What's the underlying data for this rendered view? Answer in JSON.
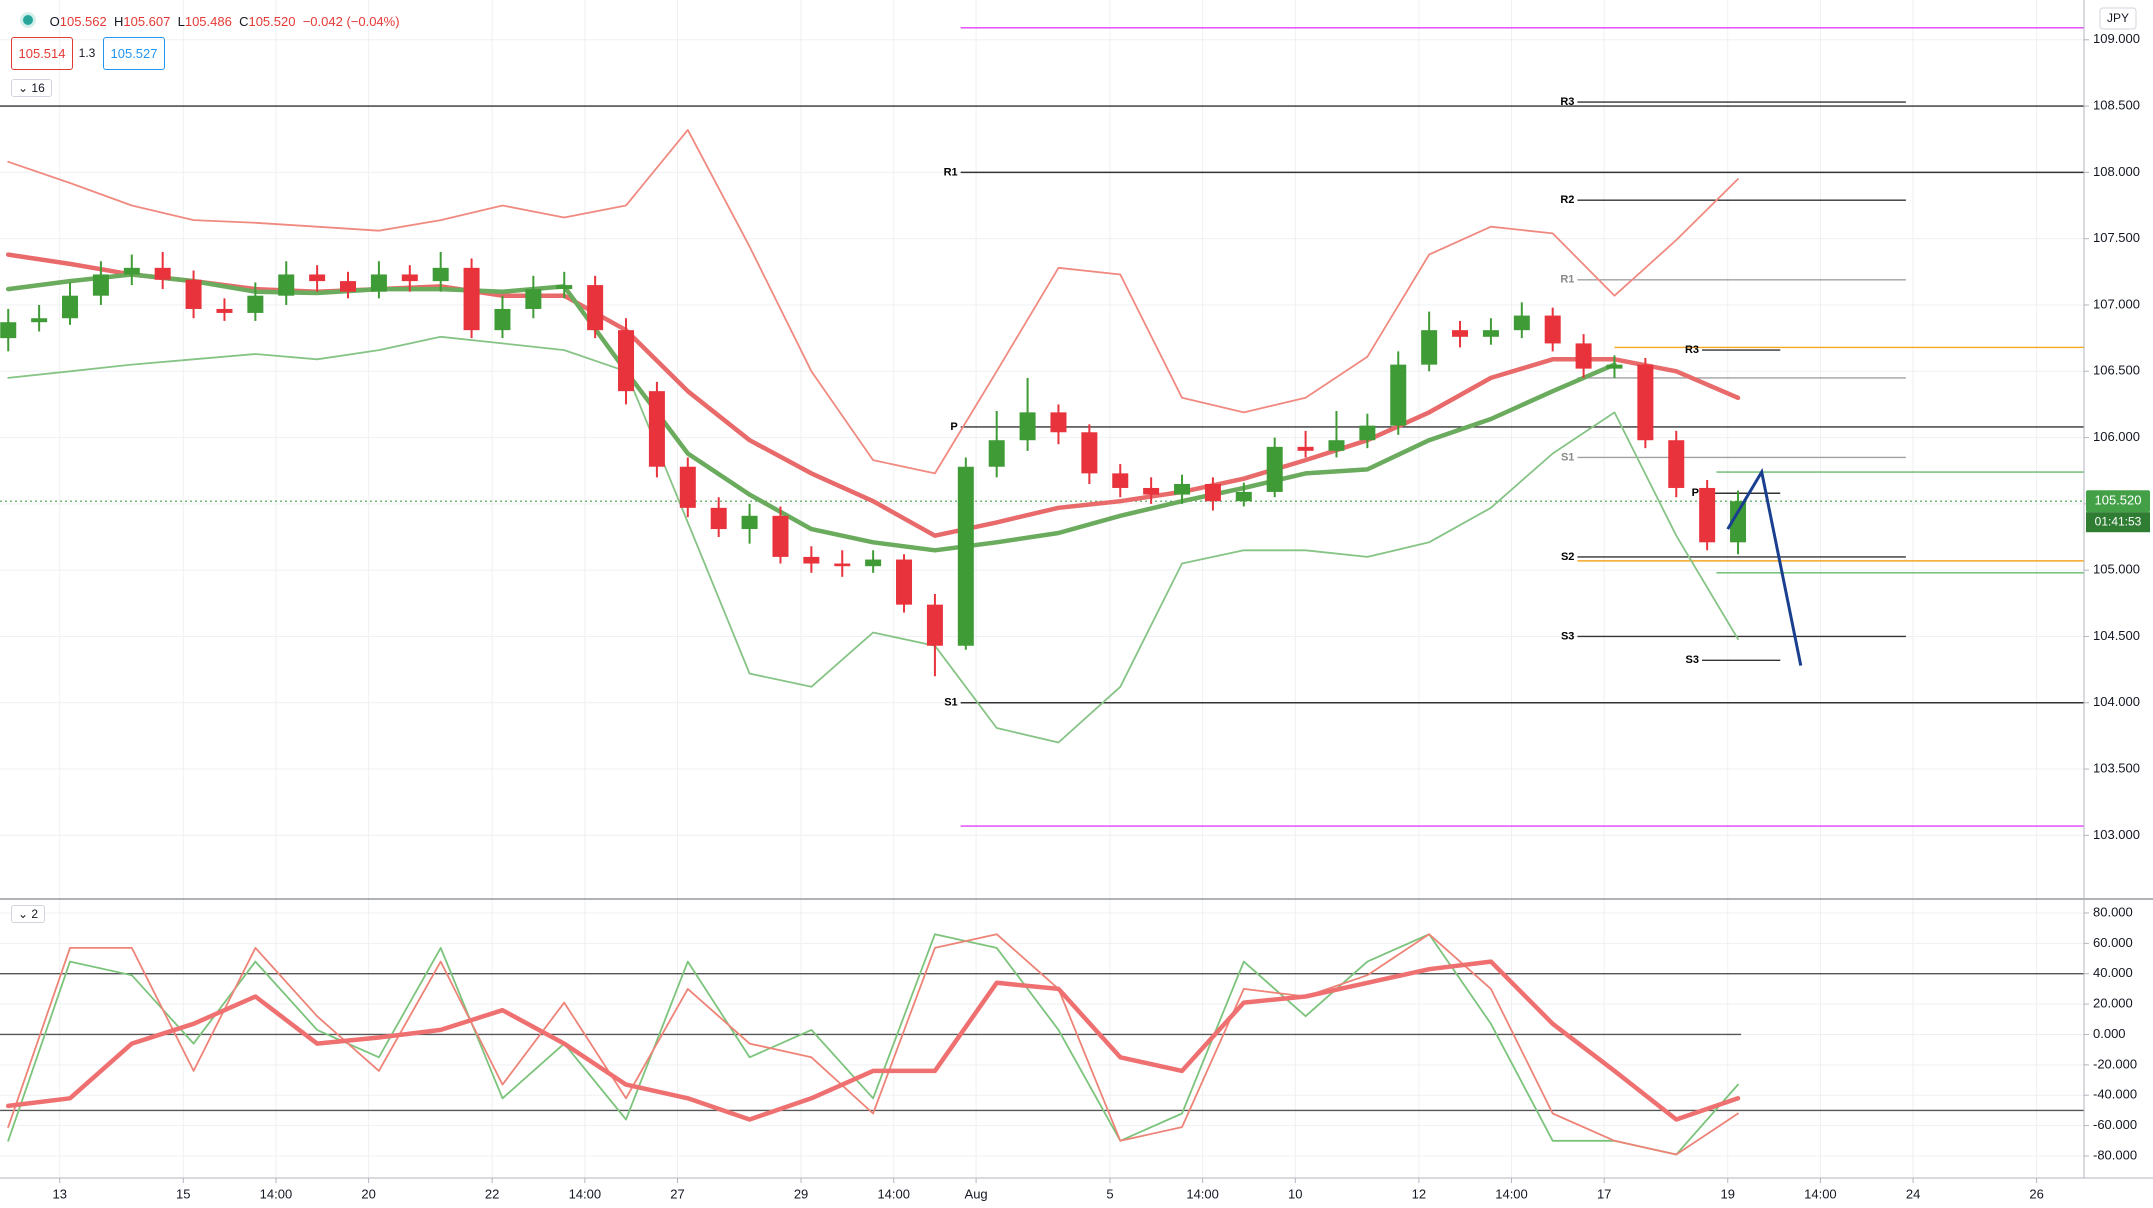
{
  "header": {
    "ohlc": [
      {
        "k": "O",
        "v": "105.562"
      },
      {
        "k": "H",
        "v": "105.607"
      },
      {
        "k": "L",
        "v": "105.486"
      },
      {
        "k": "C",
        "v": "105.520"
      }
    ],
    "change": "−0.042 (−0.04%)",
    "sell": "105.514",
    "spread": "1.3",
    "buy": "105.527",
    "indicator_main": "16",
    "indicator_osc": "2",
    "currency": "JPY",
    "price_tag": "105.520",
    "countdown": "01:41:53"
  },
  "chart_data": [
    {
      "type": "candlestick",
      "xlim": [
        -0.8,
        201.6
      ],
      "ylim": [
        102.52,
        109.3
      ],
      "grid": true,
      "yticks": [
        {
          "value": 103,
          "label": "103.000"
        },
        {
          "value": 103.5,
          "label": "103.500"
        },
        {
          "value": 104,
          "label": "104.000"
        },
        {
          "value": 104.5,
          "label": "104.500"
        },
        {
          "value": 105,
          "label": "105.000"
        },
        {
          "value": 105.5,
          "label": "105.500"
        },
        {
          "value": 106,
          "label": "106.000"
        },
        {
          "value": 106.5,
          "label": "106.500"
        },
        {
          "value": 107,
          "label": "107.000"
        },
        {
          "value": 107.5,
          "label": "107.500"
        },
        {
          "value": 108,
          "label": "108.000"
        },
        {
          "value": 108.5,
          "label": "108.500"
        },
        {
          "value": 109,
          "label": "109.000"
        }
      ],
      "up_color": "#3f9b35",
      "down_color": "#e8323c",
      "x": [
        0,
        3,
        6,
        9,
        12,
        15,
        18,
        21,
        24,
        27,
        30,
        33,
        36,
        39,
        42,
        45,
        48,
        51,
        54,
        57,
        60,
        63,
        66,
        69,
        72,
        75,
        78,
        81,
        84,
        87,
        90,
        93,
        96,
        99,
        102,
        105,
        108,
        111,
        114,
        117,
        120,
        123,
        126,
        129,
        132,
        135,
        138,
        141,
        144,
        147,
        150,
        153,
        156,
        159,
        162,
        165,
        168
      ],
      "open": [
        106.75,
        106.87,
        106.9,
        107.07,
        107.23,
        107.28,
        107.19,
        106.97,
        106.94,
        107.07,
        107.23,
        107.18,
        107.1,
        107.23,
        107.18,
        107.28,
        106.81,
        106.97,
        107.12,
        107.15,
        106.81,
        106.35,
        105.78,
        105.47,
        105.31,
        105.41,
        105.1,
        105.05,
        105.03,
        105.08,
        104.74,
        104.43,
        105.78,
        105.98,
        106.19,
        106.04,
        105.73,
        105.62,
        105.57,
        105.65,
        105.52,
        105.59,
        105.93,
        105.9,
        105.98,
        106.09,
        106.55,
        106.81,
        106.76,
        106.81,
        106.92,
        106.71,
        106.52,
        106.55,
        105.98,
        105.62,
        105.21
      ],
      "high": [
        106.97,
        107.0,
        107.17,
        107.33,
        107.38,
        107.4,
        107.26,
        107.05,
        107.17,
        107.33,
        107.3,
        107.25,
        107.33,
        107.3,
        107.4,
        107.35,
        107.07,
        107.22,
        107.25,
        107.22,
        106.9,
        106.42,
        105.85,
        105.55,
        105.5,
        105.48,
        105.18,
        105.15,
        105.15,
        105.12,
        104.82,
        105.85,
        106.2,
        106.45,
        106.25,
        106.1,
        105.8,
        105.7,
        105.72,
        105.7,
        105.66,
        106.0,
        106.05,
        106.2,
        106.18,
        106.65,
        106.95,
        106.88,
        106.9,
        107.02,
        106.98,
        106.78,
        106.62,
        106.6,
        106.05,
        105.68,
        105.6
      ],
      "low": [
        106.65,
        106.8,
        106.85,
        107.0,
        107.15,
        107.12,
        106.9,
        106.88,
        106.88,
        107.0,
        107.1,
        107.05,
        107.05,
        107.1,
        107.1,
        106.75,
        106.75,
        106.9,
        107.05,
        106.75,
        106.25,
        105.7,
        105.4,
        105.25,
        105.2,
        105.05,
        104.98,
        104.95,
        104.98,
        104.68,
        104.2,
        104.4,
        105.7,
        105.9,
        105.95,
        105.65,
        105.55,
        105.5,
        105.5,
        105.45,
        105.48,
        105.55,
        105.85,
        105.85,
        105.92,
        106.02,
        106.5,
        106.68,
        106.7,
        106.75,
        106.65,
        106.45,
        106.45,
        105.92,
        105.55,
        105.15,
        105.12
      ],
      "close": [
        106.87,
        106.9,
        107.07,
        107.23,
        107.28,
        107.19,
        106.97,
        106.94,
        107.07,
        107.23,
        107.18,
        107.1,
        107.23,
        107.18,
        107.28,
        106.81,
        106.97,
        107.12,
        107.15,
        106.81,
        106.35,
        105.78,
        105.47,
        105.31,
        105.41,
        105.1,
        105.05,
        105.03,
        105.08,
        104.74,
        104.43,
        105.78,
        105.98,
        106.19,
        106.04,
        105.73,
        105.62,
        105.57,
        105.65,
        105.52,
        105.59,
        105.93,
        105.9,
        105.98,
        106.09,
        106.55,
        106.81,
        106.76,
        106.81,
        106.92,
        106.71,
        106.52,
        106.55,
        105.98,
        105.62,
        105.21,
        105.52
      ],
      "last_price_color": "#43a047",
      "line_x": [
        0,
        6,
        12,
        18,
        24,
        30,
        36,
        42,
        48,
        54,
        60,
        66,
        72,
        78,
        84,
        90,
        96,
        102,
        108,
        114,
        120,
        126,
        132,
        138,
        144,
        150,
        156,
        162,
        168
      ],
      "lines": [
        {
          "color": "#f08a80",
          "values": [
            108.08,
            107.92,
            107.75,
            107.64,
            107.62,
            107.59,
            107.56,
            107.64,
            107.75,
            107.66,
            107.75,
            108.32,
            107.44,
            106.5,
            105.83,
            105.73,
            106.5,
            107.28,
            107.23,
            106.3,
            106.19,
            106.3,
            106.61,
            107.38,
            107.59,
            107.54,
            107.07,
            107.49,
            107.95
          ]
        },
        {
          "color": "#86c486",
          "values": [
            106.45,
            106.5,
            106.55,
            106.59,
            106.63,
            106.59,
            106.66,
            106.76,
            106.71,
            106.66,
            106.5,
            105.36,
            104.22,
            104.12,
            104.53,
            104.43,
            103.81,
            103.7,
            104.12,
            105.05,
            105.15,
            105.15,
            105.1,
            105.21,
            105.47,
            105.88,
            106.19,
            105.26,
            104.48
          ]
        },
        {
          "color": "#e86a6a",
          "thick": true,
          "values": [
            107.38,
            107.31,
            107.23,
            107.18,
            107.12,
            107.1,
            107.12,
            107.14,
            107.07,
            107.07,
            106.81,
            106.35,
            105.98,
            105.73,
            105.52,
            105.26,
            105.36,
            105.47,
            105.52,
            105.59,
            105.69,
            105.83,
            105.98,
            106.19,
            106.45,
            106.59,
            106.59,
            106.5,
            106.3
          ]
        },
        {
          "color": "#6aab5e",
          "thick": true,
          "values": [
            107.12,
            107.18,
            107.23,
            107.18,
            107.1,
            107.09,
            107.12,
            107.12,
            107.1,
            107.14,
            106.5,
            105.88,
            105.57,
            105.31,
            105.21,
            105.15,
            105.21,
            105.28,
            105.41,
            105.52,
            105.62,
            105.73,
            105.76,
            105.98,
            106.14,
            106.35,
            106.55,
            null,
            null
          ]
        }
      ],
      "levels": [
        {
          "value": 109.09,
          "color": "#e040fb",
          "from": 92.5
        },
        {
          "value": 103.07,
          "color": "#e040fb",
          "from": 92.5
        },
        {
          "value": 108.5,
          "color": "#333333"
        },
        {
          "value": 108.53,
          "color": "#333333",
          "from": 152.4,
          "to": 184.3,
          "label": "R3"
        },
        {
          "value": 108.0,
          "color": "#333333",
          "from": 92.5,
          "label": "R1"
        },
        {
          "value": 107.79,
          "color": "#333333",
          "from": 152.4,
          "to": 184.3,
          "label": "R2"
        },
        {
          "value": 107.19,
          "color": "#a0a0a0",
          "from": 152.4,
          "to": 184.3,
          "label": "R1",
          "label_color": "#888888"
        },
        {
          "value": 106.68,
          "color": "#f5a623",
          "from": 156
        },
        {
          "value": 106.66,
          "color": "#333333",
          "from": 164.5,
          "to": 172.1,
          "label": "R3"
        },
        {
          "value": 106.45,
          "color": "#a0a0a0",
          "from": 152.4,
          "to": 184.3
        },
        {
          "value": 106.08,
          "color": "#333333",
          "from": 92.5,
          "label": "P"
        },
        {
          "value": 105.85,
          "color": "#a0a0a0",
          "from": 152.4,
          "to": 184.3,
          "label": "S1",
          "label_color": "#888888"
        },
        {
          "value": 105.74,
          "color": "#66bb6a",
          "from": 165.9
        },
        {
          "value": 105.58,
          "color": "#333333",
          "from": 164.5,
          "to": 172.1,
          "label": "P"
        },
        {
          "value": 105.1,
          "color": "#333333",
          "from": 152.4,
          "to": 184.3,
          "label": "S2"
        },
        {
          "value": 105.07,
          "color": "#f5a623",
          "from": 152.4
        },
        {
          "value": 104.98,
          "color": "#66bb6a",
          "from": 165.9
        },
        {
          "value": 104.5,
          "color": "#333333",
          "from": 152.4,
          "to": 184.3,
          "label": "S3"
        },
        {
          "value": 104.32,
          "color": "#333333",
          "from": 164.5,
          "to": 172.1,
          "label": "S3"
        },
        {
          "value": 104.0,
          "color": "#333333",
          "from": 92.5,
          "label": "S1"
        }
      ],
      "forecast": {
        "color": "#1a3f8f",
        "x": [
          167,
          170.3,
          174.1
        ],
        "values": [
          105.31,
          105.74,
          104.28
        ]
      }
    },
    {
      "type": "line",
      "xlim": [
        -0.8,
        201.6
      ],
      "ylim": [
        -94.5,
        89.2
      ],
      "grid": true,
      "yticks": [
        {
          "value": -80,
          "label": "-80.000"
        },
        {
          "value": -60,
          "label": "-60.000"
        },
        {
          "value": -40,
          "label": "-40.000"
        },
        {
          "value": -20,
          "label": "-20.000"
        },
        {
          "value": 0,
          "label": "0.000"
        },
        {
          "value": 20,
          "label": "20.000"
        },
        {
          "value": 40,
          "label": "40.000"
        },
        {
          "value": 60,
          "label": "60.000"
        },
        {
          "value": 80,
          "label": "80.000"
        }
      ],
      "xticks": [
        {
          "value": 5,
          "label": "13"
        },
        {
          "value": 17,
          "label": "15"
        },
        {
          "value": 26,
          "label": "14:00"
        },
        {
          "value": 35,
          "label": "20"
        },
        {
          "value": 47,
          "label": "22"
        },
        {
          "value": 56,
          "label": "14:00"
        },
        {
          "value": 65,
          "label": "27"
        },
        {
          "value": 77,
          "label": "29"
        },
        {
          "value": 86,
          "label": "14:00"
        },
        {
          "value": 94,
          "label": "Aug"
        },
        {
          "value": 107,
          "label": "5"
        },
        {
          "value": 116,
          "label": "14:00"
        },
        {
          "value": 125,
          "label": "10"
        },
        {
          "value": 137,
          "label": "12"
        },
        {
          "value": 146,
          "label": "14:00"
        },
        {
          "value": 155,
          "label": "17"
        },
        {
          "value": 167,
          "label": "19"
        },
        {
          "value": 176,
          "label": "14:00"
        },
        {
          "value": 185,
          "label": "24"
        },
        {
          "value": 197,
          "label": "26"
        }
      ],
      "line_x": [
        0,
        6,
        12,
        18,
        24,
        30,
        36,
        42,
        48,
        54,
        60,
        66,
        72,
        78,
        84,
        90,
        96,
        102,
        108,
        114,
        120,
        126,
        132,
        138,
        144,
        150,
        156,
        162,
        168
      ],
      "lines": [
        {
          "color": "#7cc47c",
          "values": [
            -70,
            48,
            39,
            -6,
            48,
            3,
            -15,
            57,
            -42,
            -6,
            -56,
            48,
            -15,
            3,
            -42,
            66,
            57,
            3,
            -70,
            -52,
            48,
            12,
            48,
            66,
            7,
            -70,
            -70,
            -79,
            -33
          ]
        },
        {
          "color": "#ee8377",
          "values": [
            -61,
            57,
            57,
            -24,
            57,
            12,
            -24,
            48,
            -33,
            21,
            -42,
            30,
            -6,
            -15,
            -52,
            57,
            66,
            30,
            -70,
            -61,
            30,
            25,
            39,
            66,
            30,
            -52,
            -70,
            -79,
            -52
          ]
        },
        {
          "color": "#ef7070",
          "thick": true,
          "values": [
            -47,
            -42,
            -6,
            7,
            25,
            -6,
            -2,
            3,
            16,
            -6,
            -33,
            -42,
            -56,
            -42,
            -24,
            -24,
            34,
            30,
            -15,
            -24,
            21,
            25,
            34,
            43,
            48,
            7,
            -24,
            -56,
            -42
          ]
        }
      ],
      "levels": [
        {
          "value": 40,
          "color": "#555555"
        },
        {
          "value": 0,
          "color": "#555555",
          "to": 168.3
        },
        {
          "value": -50,
          "color": "#555555"
        }
      ]
    }
  ]
}
